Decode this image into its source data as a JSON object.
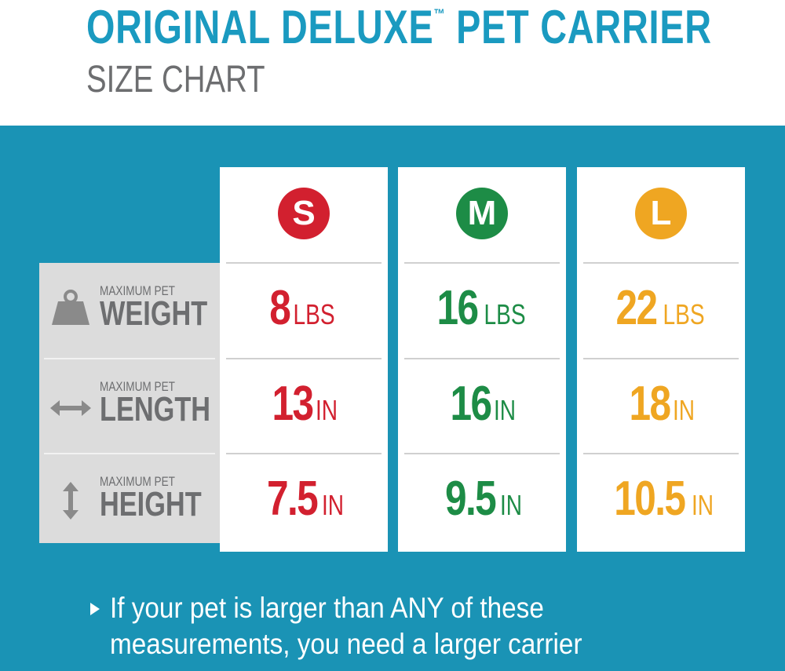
{
  "header": {
    "title": "ORIGINAL DELUXE",
    "trademark": "™",
    "title_rest": "PET CARRIER",
    "subtitle": "SIZE CHART"
  },
  "table": {
    "sizes": [
      {
        "letter": "S",
        "color": "#d2202f"
      },
      {
        "letter": "M",
        "color": "#1d8c46"
      },
      {
        "letter": "L",
        "color": "#efa622"
      }
    ],
    "rows": [
      {
        "prefix": "MAXIMUM PET",
        "label": "WEIGHT",
        "cells": [
          {
            "value": "8",
            "unit": "LBS"
          },
          {
            "value": "16",
            "unit": "LBS"
          },
          {
            "value": "22",
            "unit": "LBS"
          }
        ]
      },
      {
        "prefix": "MAXIMUM PET",
        "label": "LENGTH",
        "cells": [
          {
            "value": "13",
            "unit": "IN"
          },
          {
            "value": "16",
            "unit": "IN"
          },
          {
            "value": "18",
            "unit": "IN"
          }
        ]
      },
      {
        "prefix": "MAXIMUM PET",
        "label": "HEIGHT",
        "cells": [
          {
            "value": "7.5",
            "unit": "IN"
          },
          {
            "value": "9.5",
            "unit": "IN"
          },
          {
            "value": "10.5",
            "unit": "IN"
          }
        ]
      }
    ]
  },
  "note": "If your pet is larger than ANY of these measurements, you need a larger carrier"
}
